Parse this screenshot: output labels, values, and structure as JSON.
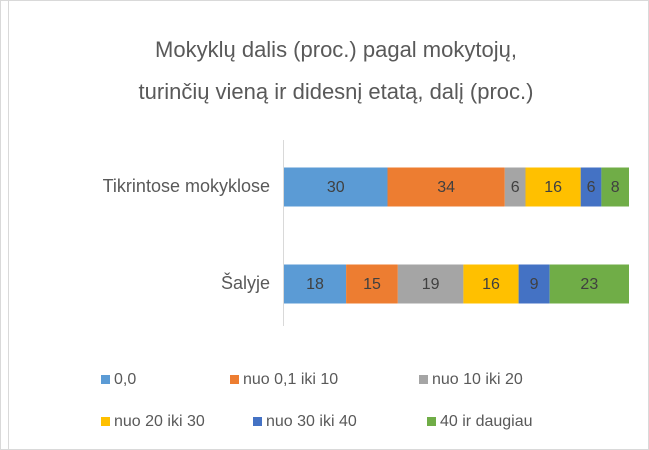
{
  "chart_data": {
    "type": "stacked-bar-horizontal",
    "title": [
      "Mokyklų dalis (proc.) pagal mokytojų,",
      "turinčių vieną ir didesnį etatą, dalį (proc.)"
    ],
    "categories": [
      "Tikrintose mokyklose",
      "Šalyje"
    ],
    "xlim": [
      0,
      100
    ],
    "series": [
      {
        "name": "0,0",
        "color": "#5b9bd5",
        "values": [
          30,
          18
        ]
      },
      {
        "name": "nuo 0,1 iki 10",
        "color": "#ed7d31",
        "values": [
          34,
          15
        ]
      },
      {
        "name": "nuo 10 iki 20",
        "color": "#a5a5a5",
        "values": [
          6,
          19
        ]
      },
      {
        "name": "nuo 20 iki 30",
        "color": "#ffc000",
        "values": [
          16,
          16
        ]
      },
      {
        "name": "nuo 30 iki 40",
        "color": "#4472c4",
        "values": [
          6,
          9
        ]
      },
      {
        "name": "40 ir daugiau",
        "color": "#70ad47",
        "values": [
          8,
          23
        ]
      }
    ],
    "legend": "bottom"
  }
}
